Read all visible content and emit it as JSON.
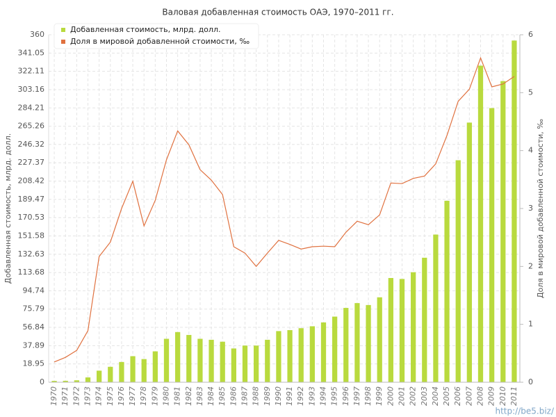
{
  "chart_data": {
    "type": "bar",
    "title": "Валовая добавленная стоимость ОАЭ, 1970–2011 гг.",
    "y_label": "Добавленная стоимость, млрд. долл.",
    "y2_label": "Доля в мировой добавленной стоимости, ‰",
    "watermark": "http://be5.biz/",
    "categories": [
      "1970",
      "1971",
      "1972",
      "1973",
      "1974",
      "1975",
      "1976",
      "1977",
      "1978",
      "1979",
      "1980",
      "1981",
      "1982",
      "1983",
      "1984",
      "1985",
      "1986",
      "1987",
      "1988",
      "1989",
      "1990",
      "1991",
      "1992",
      "1993",
      "1994",
      "1995",
      "1996",
      "1997",
      "1998",
      "1999",
      "2000",
      "2001",
      "2002",
      "2003",
      "2004",
      "2005",
      "2006",
      "2007",
      "2008",
      "2009",
      "2010",
      "2011"
    ],
    "series": [
      {
        "name": "Добавленная стоимость, млрд. долл.",
        "type": "bar",
        "color": "#b9da3e",
        "values": [
          1.4,
          1.5,
          2,
          5,
          12,
          16,
          21,
          27,
          24,
          32,
          45,
          52,
          49,
          45,
          44,
          42,
          35,
          38,
          38,
          44,
          53,
          54,
          56,
          58,
          62,
          68,
          77,
          82,
          80,
          88,
          108,
          107,
          114,
          129,
          153,
          188,
          230,
          269,
          328,
          284,
          312,
          354
        ]
      },
      {
        "name": "Доля в мировой добавленной стоимости, ‰",
        "type": "line",
        "color": "#e0713f",
        "axis": "y2",
        "values": [
          0.35,
          0.43,
          0.55,
          0.89,
          2.17,
          2.42,
          3.0,
          3.47,
          2.7,
          3.14,
          3.84,
          4.34,
          4.1,
          3.67,
          3.49,
          3.24,
          2.34,
          2.23,
          2.0,
          2.23,
          2.45,
          2.38,
          2.3,
          2.34,
          2.35,
          2.34,
          2.59,
          2.78,
          2.72,
          2.89,
          3.44,
          3.43,
          3.52,
          3.56,
          3.77,
          4.26,
          4.85,
          5.06,
          5.6,
          5.1,
          5.15,
          5.28
        ]
      }
    ],
    "ylim": [
      0,
      360
    ],
    "yticks": [
      0,
      18.95,
      37.89,
      56.84,
      75.79,
      94.74,
      113.68,
      132.63,
      151.58,
      170.53,
      189.47,
      208.42,
      227.37,
      246.32,
      265.26,
      284.21,
      303.16,
      322.11,
      341.05,
      360
    ],
    "y2lim": [
      0,
      6
    ],
    "y2ticks": [
      0,
      1,
      2,
      3,
      4,
      5,
      6
    ],
    "grid": true
  }
}
